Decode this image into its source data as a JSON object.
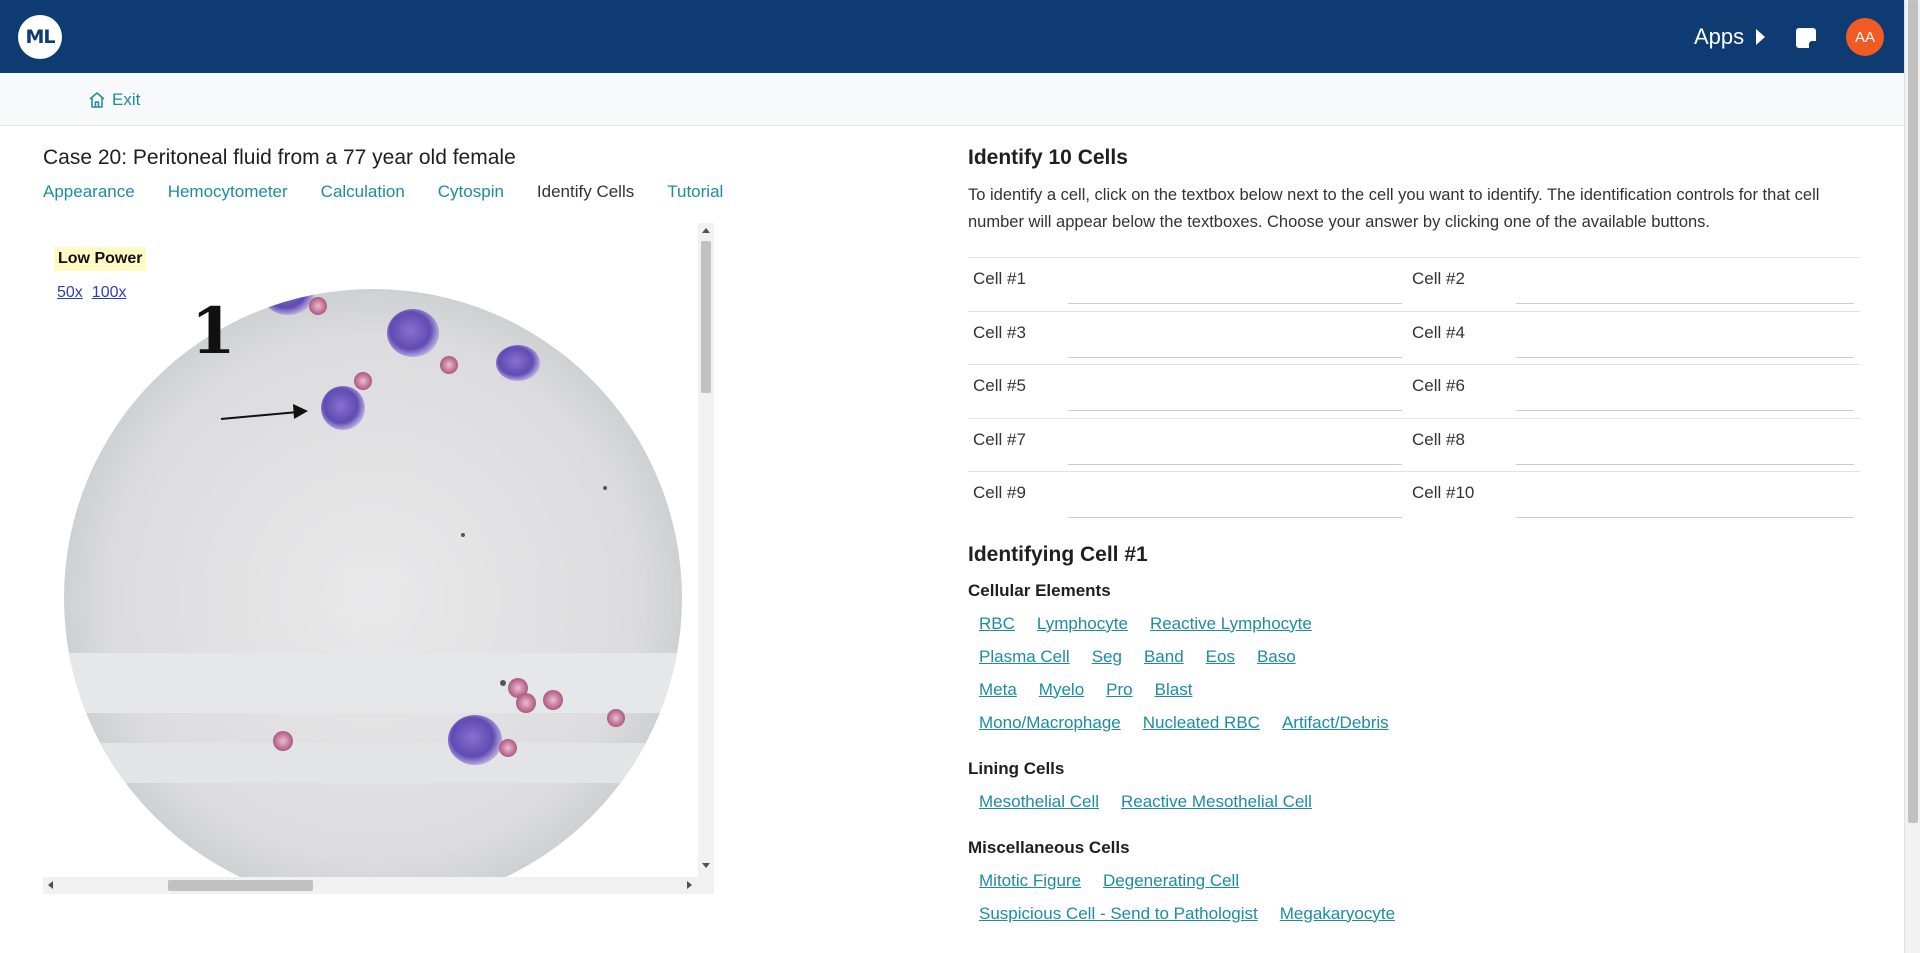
{
  "header": {
    "logo_text": "ML",
    "apps_label": "Apps",
    "avatar_initials": "AA",
    "brand_color": "#0d3b72",
    "avatar_color": "#f15a22"
  },
  "subbar": {
    "exit_label": "Exit"
  },
  "case": {
    "title": "Case 20: Peritoneal fluid from a 77 year old female",
    "tabs": [
      "Appearance",
      "Hemocytometer",
      "Calculation",
      "Cytospin",
      "Identify Cells",
      "Tutorial"
    ],
    "active_tab": "Identify Cells"
  },
  "viewer": {
    "power_label": "Low Power",
    "zoom_options": [
      "50x",
      "100x"
    ],
    "slide_number": "1"
  },
  "identify": {
    "heading": "Identify 10 Cells",
    "instructions": "To identify a cell, click on the textbox below next to the cell you want to identify. The identification controls for that cell number will appear below the textboxes. Choose your answer by clicking one of the available buttons.",
    "cells": [
      [
        "Cell #1",
        "Cell #2"
      ],
      [
        "Cell #3",
        "Cell #4"
      ],
      [
        "Cell #5",
        "Cell #6"
      ],
      [
        "Cell #7",
        "Cell #8"
      ],
      [
        "Cell #9",
        "Cell #10"
      ]
    ]
  },
  "identifying": {
    "heading": "Identifying Cell #1",
    "groups": [
      {
        "title": "Cellular Elements",
        "rows": [
          [
            "RBC",
            "Lymphocyte",
            "Reactive Lymphocyte"
          ],
          [
            "Plasma Cell",
            "Seg",
            "Band",
            "Eos",
            "Baso"
          ],
          [
            "Meta",
            "Myelo",
            "Pro",
            "Blast"
          ],
          [
            "Mono/Macrophage",
            "Nucleated RBC",
            "Artifact/Debris"
          ]
        ]
      },
      {
        "title": "Lining Cells",
        "rows": [
          [
            "Mesothelial Cell",
            "Reactive Mesothelial Cell"
          ]
        ]
      },
      {
        "title": "Miscellaneous Cells",
        "rows": [
          [
            "Mitotic Figure",
            "Degenerating Cell"
          ],
          [
            "Suspicious Cell - Send to Pathologist",
            "Megakaryocyte"
          ]
        ]
      }
    ]
  }
}
